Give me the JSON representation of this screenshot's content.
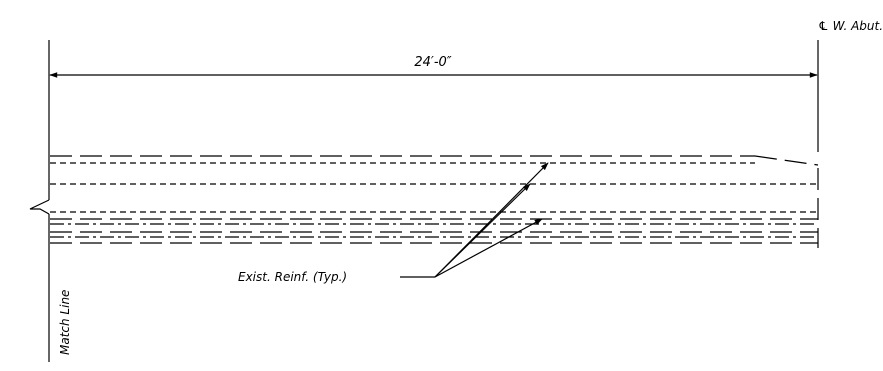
{
  "drawing": {
    "centerline_label": "℄ W. Abut.",
    "dimension_text": "24′-0″",
    "note_text": "Exist. Reinf. (Typ.)",
    "match_line_text": "Match Line"
  }
}
